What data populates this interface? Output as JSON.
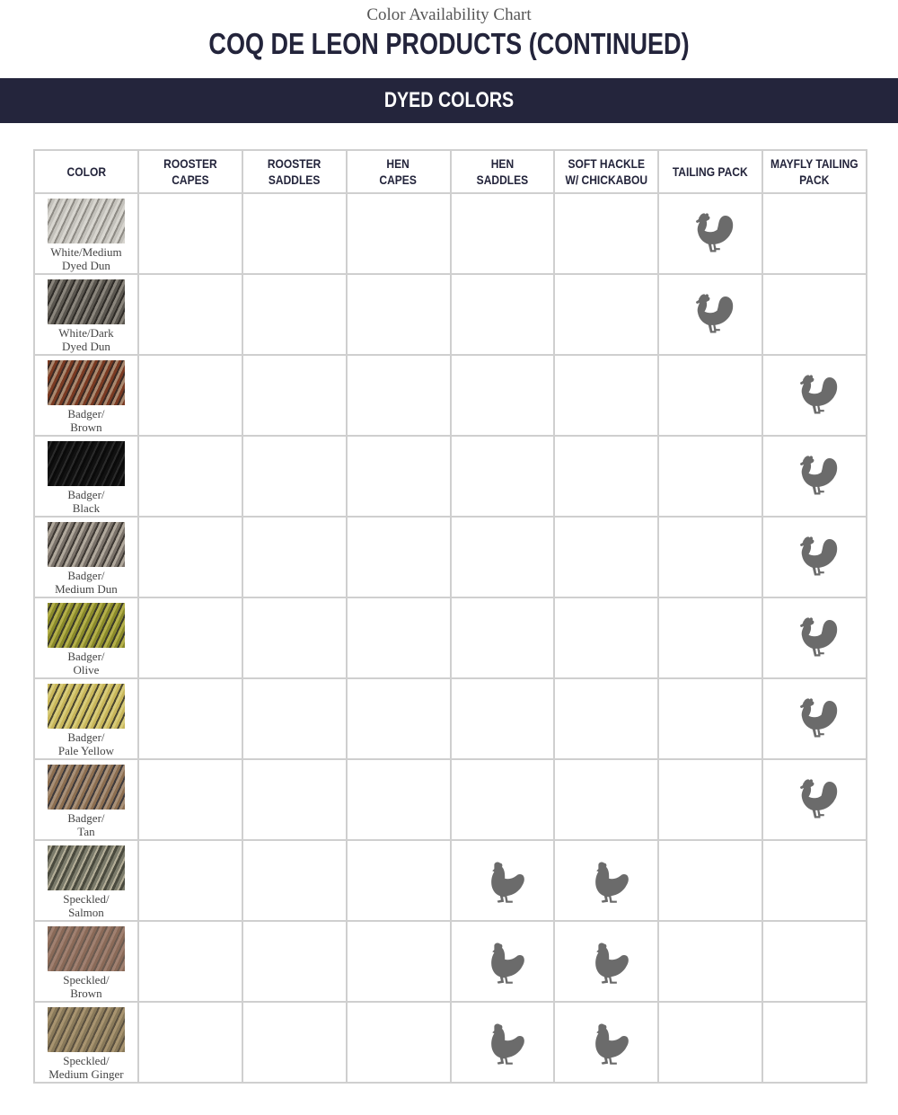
{
  "header": {
    "subtitle": "Color Availability Chart",
    "title": "COQ DE LEON PRODUCTS (CONTINUED)",
    "section": "DYED COLORS"
  },
  "columns": [
    {
      "key": "color",
      "label": "COLOR"
    },
    {
      "key": "rooster_capes",
      "label": "ROOSTER CAPES"
    },
    {
      "key": "rooster_saddles",
      "label": "ROOSTER\nSADDLES"
    },
    {
      "key": "hen_capes",
      "label": "HEN\nCAPES"
    },
    {
      "key": "hen_saddles",
      "label": "HEN\nSADDLES"
    },
    {
      "key": "soft_hackle",
      "label": "SOFT HACKLE\nW/ CHICKABOU"
    },
    {
      "key": "tailing_pack",
      "label": "TAILING PACK"
    },
    {
      "key": "mayfly_tailing_pack",
      "label": "MAYFLY TAILING\nPACK"
    }
  ],
  "icon_color": "#6b6b6b",
  "rows": [
    {
      "name": "White/Medium\nDyed Dun",
      "swatch": [
        "#d8d6d0",
        "#8d8a84",
        "#c4c2bc"
      ],
      "available": {
        "tailing_pack": "rooster-icon"
      }
    },
    {
      "name": "White/Dark\nDyed Dun",
      "swatch": [
        "#5b5750",
        "#2e2b27",
        "#8a857c"
      ],
      "available": {
        "tailing_pack": "rooster-icon"
      }
    },
    {
      "name": "Badger/\nBrown",
      "swatch": [
        "#7a3a22",
        "#3b2a24",
        "#a9886f"
      ],
      "available": {
        "mayfly_tailing_pack": "rooster-icon"
      }
    },
    {
      "name": "Badger/\nBlack",
      "swatch": [
        "#111111",
        "#2a2a2a",
        "#0a0a0a"
      ],
      "available": {
        "mayfly_tailing_pack": "rooster-icon"
      }
    },
    {
      "name": "Badger/\nMedium Dun",
      "swatch": [
        "#7a726a",
        "#3d3833",
        "#b0a89c"
      ],
      "available": {
        "mayfly_tailing_pack": "rooster-icon"
      }
    },
    {
      "name": "Badger/\nOlive",
      "swatch": [
        "#8a8a2a",
        "#3a3a2a",
        "#b4b04a"
      ],
      "available": {
        "mayfly_tailing_pack": "rooster-icon"
      }
    },
    {
      "name": "Badger/\nPale Yellow",
      "swatch": [
        "#c8b65a",
        "#4a4630",
        "#d8cc7a"
      ],
      "available": {
        "mayfly_tailing_pack": "rooster-icon"
      }
    },
    {
      "name": "Badger/\nTan",
      "swatch": [
        "#8c6e50",
        "#3e3a3c",
        "#a89078"
      ],
      "available": {
        "mayfly_tailing_pack": "rooster-icon"
      }
    },
    {
      "name": "Speckled/\nSalmon",
      "swatch": [
        "#7a7a6a",
        "#b4ae98",
        "#4a4a3e"
      ],
      "available": {
        "hen_saddles": "hen-icon",
        "soft_hackle": "hen-icon"
      }
    },
    {
      "name": "Speckled/\nBrown",
      "swatch": [
        "#8a6a58",
        "#6a5a50",
        "#a08070"
      ],
      "available": {
        "hen_saddles": "hen-icon",
        "soft_hackle": "hen-icon"
      }
    },
    {
      "name": "Speckled/\nMedium Ginger",
      "swatch": [
        "#8a7a5a",
        "#5a5040",
        "#a89470"
      ],
      "available": {
        "hen_saddles": "hen-icon",
        "soft_hackle": "hen-icon"
      }
    }
  ]
}
